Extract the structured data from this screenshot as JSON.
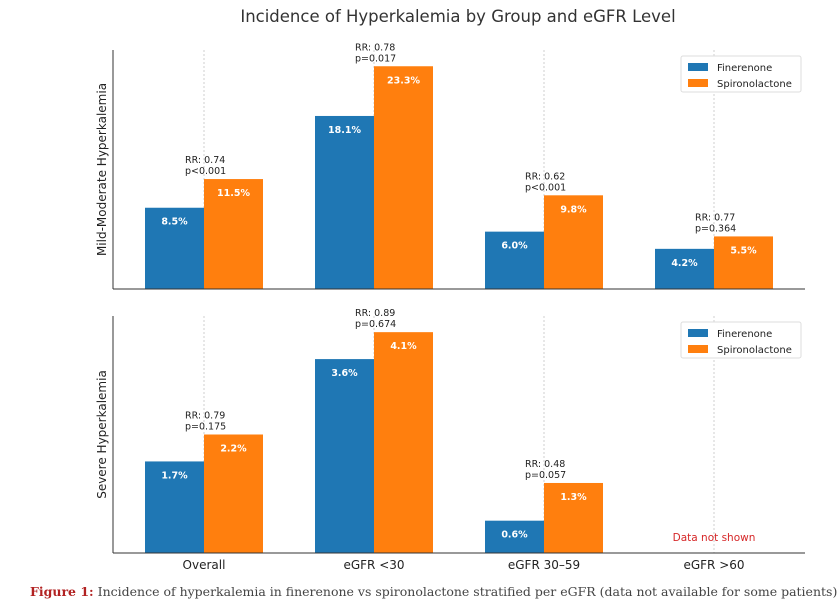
{
  "figure": {
    "title": "Incidence of Hyperkalemia by Group and eGFR Level",
    "caption_label": "Figure 1:",
    "caption_text": " Incidence of hyperkalemia in finerenone vs spironolactone stratified per eGFR (data not available for some patients)."
  },
  "colors": {
    "finerenone": "#1f77b4",
    "spironolactone": "#ff7f0e",
    "grid": "#cfcfcf",
    "axis": "#333333",
    "missing_note": "#d62728"
  },
  "chart_data": [
    {
      "type": "bar",
      "ylabel": "Mild-Moderate Hyperkalemia",
      "categories": [
        "Overall",
        "eGFR <30",
        "eGFR 30–59",
        "eGFR >60"
      ],
      "ylim": [
        0,
        25
      ],
      "grid": "x-dotted",
      "legend": "top-right",
      "series": [
        {
          "name": "Finerenone",
          "values": [
            8.5,
            18.1,
            6.0,
            4.2
          ],
          "labels": [
            "8.5%",
            "18.1%",
            "6.0%",
            "4.2%"
          ]
        },
        {
          "name": "Spironolactone",
          "values": [
            11.5,
            23.3,
            9.8,
            5.5
          ],
          "labels": [
            "11.5%",
            "23.3%",
            "9.8%",
            "5.5%"
          ]
        }
      ],
      "annotations": [
        {
          "rr": "RR: 0.74",
          "p": "p<0.001"
        },
        {
          "rr": "RR: 0.78",
          "p": "p=0.017"
        },
        {
          "rr": "RR: 0.62",
          "p": "p<0.001"
        },
        {
          "rr": "RR: 0.77",
          "p": "p=0.364"
        }
      ],
      "missing_note": ""
    },
    {
      "type": "bar",
      "ylabel": "Severe Hyperkalemia",
      "categories": [
        "Overall",
        "eGFR <30",
        "eGFR 30–59",
        "eGFR >60"
      ],
      "ylim": [
        0,
        4.4
      ],
      "grid": "x-dotted",
      "legend": "top-right",
      "series": [
        {
          "name": "Finerenone",
          "values": [
            1.7,
            3.6,
            0.6,
            null
          ],
          "labels": [
            "1.7%",
            "3.6%",
            "0.6%",
            ""
          ]
        },
        {
          "name": "Spironolactone",
          "values": [
            2.2,
            4.1,
            1.3,
            null
          ],
          "labels": [
            "2.2%",
            "4.1%",
            "1.3%",
            ""
          ]
        }
      ],
      "annotations": [
        {
          "rr": "RR: 0.79",
          "p": "p=0.175"
        },
        {
          "rr": "RR: 0.89",
          "p": "p=0.674"
        },
        {
          "rr": "RR: 0.48",
          "p": "p=0.057"
        },
        null
      ],
      "missing_note": "Data not shown"
    }
  ]
}
